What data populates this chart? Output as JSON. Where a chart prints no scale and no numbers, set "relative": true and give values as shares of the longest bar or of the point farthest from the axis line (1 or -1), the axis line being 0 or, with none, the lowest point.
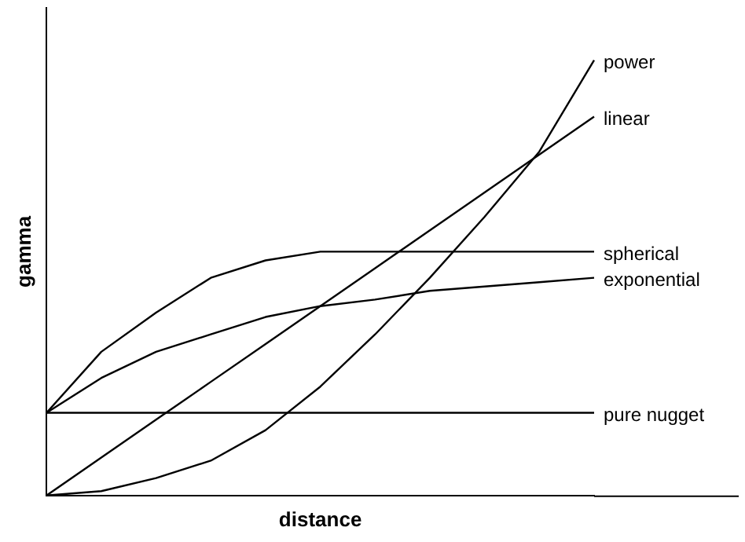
{
  "chart_data": {
    "type": "line",
    "relative": true,
    "xlabel": "distance",
    "ylabel": "gamma",
    "legend": false,
    "grid": false,
    "categories": [
      null,
      null,
      null,
      null,
      null,
      null,
      null,
      null,
      null,
      null,
      null
    ],
    "series": [
      {
        "name": "power",
        "color": "#000000",
        "values": [
          0,
          0.01,
          0.04,
          0.08,
          0.15,
          0.25,
          0.37,
          0.5,
          0.64,
          0.79,
          1
        ]
      },
      {
        "name": "linear",
        "color": "#000000",
        "values": [
          0,
          0.087,
          0.174,
          0.261,
          0.348,
          0.435,
          0.522,
          0.609,
          0.696,
          0.783,
          0.87
        ]
      },
      {
        "name": "spherical",
        "color": "#000000",
        "values": [
          0.19,
          0.33,
          0.42,
          0.5,
          0.54,
          0.56,
          0.56,
          0.56,
          0.56,
          0.56,
          0.56
        ]
      },
      {
        "name": "exponential",
        "color": "#000000",
        "values": [
          0.19,
          0.27,
          0.33,
          0.37,
          0.41,
          0.435,
          0.45,
          0.47,
          0.48,
          0.49,
          0.5
        ]
      },
      {
        "name": "pure nugget",
        "color": "#000000",
        "values": [
          0.19,
          0.19,
          0.19,
          0.19,
          0.19,
          0.19,
          0.19,
          0.19,
          0.19,
          0.19,
          0.19
        ]
      }
    ]
  }
}
